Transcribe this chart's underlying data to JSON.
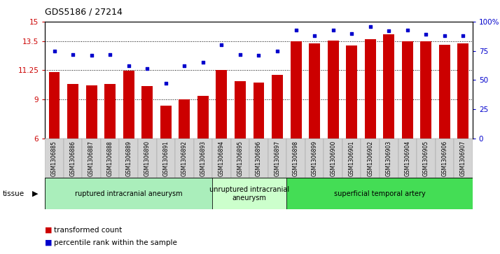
{
  "title": "GDS5186 / 27214",
  "samples": [
    "GSM1306885",
    "GSM1306886",
    "GSM1306887",
    "GSM1306888",
    "GSM1306889",
    "GSM1306890",
    "GSM1306891",
    "GSM1306892",
    "GSM1306893",
    "GSM1306894",
    "GSM1306895",
    "GSM1306896",
    "GSM1306897",
    "GSM1306898",
    "GSM1306899",
    "GSM1306900",
    "GSM1306901",
    "GSM1306902",
    "GSM1306903",
    "GSM1306904",
    "GSM1306905",
    "GSM1306906",
    "GSM1306907"
  ],
  "bar_values": [
    11.1,
    10.2,
    10.1,
    10.2,
    11.2,
    10.05,
    8.55,
    9.0,
    9.3,
    11.25,
    10.4,
    10.3,
    10.9,
    13.5,
    13.3,
    13.55,
    13.15,
    13.65,
    14.0,
    13.5,
    13.5,
    13.2,
    13.3
  ],
  "percentile_values": [
    75,
    72,
    71,
    72,
    62,
    60,
    47,
    62,
    65,
    80,
    72,
    71,
    75,
    93,
    88,
    93,
    90,
    96,
    92,
    93,
    89,
    88,
    88
  ],
  "bar_color": "#cc0000",
  "point_color": "#0000cc",
  "ylim_left": [
    6,
    15
  ],
  "ylim_right": [
    0,
    100
  ],
  "yticks_left": [
    6,
    9,
    11.25,
    13.5,
    15
  ],
  "yticks_right": [
    0,
    25,
    50,
    75,
    100
  ],
  "ytick_labels_left": [
    "6",
    "9",
    "11.25",
    "13.5",
    "15"
  ],
  "ytick_labels_right": [
    "0",
    "25",
    "50",
    "75",
    "100%"
  ],
  "groups": [
    {
      "label": "ruptured intracranial aneurysm",
      "start": 0,
      "end": 8,
      "color": "#aaeebb"
    },
    {
      "label": "unruptured intracranial\naneurysm",
      "start": 9,
      "end": 12,
      "color": "#ccffcc"
    },
    {
      "label": "superficial temporal artery",
      "start": 13,
      "end": 22,
      "color": "#44dd55"
    }
  ],
  "tissue_label": "tissue",
  "legend_items": [
    {
      "label": "transformed count",
      "color": "#cc0000"
    },
    {
      "label": "percentile rank within the sample",
      "color": "#0000cc"
    }
  ],
  "plot_bg_color": "#ffffff",
  "xtick_bg_color": "#d4d4d4",
  "bar_width": 0.6
}
